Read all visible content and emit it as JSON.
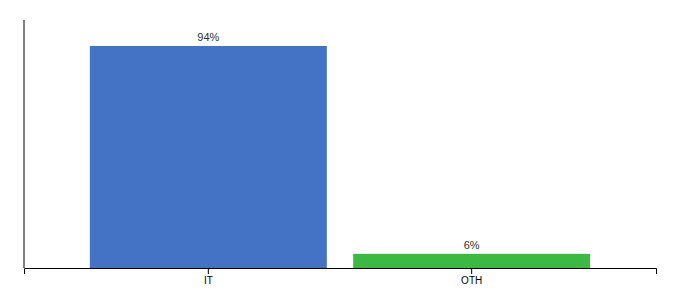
{
  "chart_data": {
    "type": "bar",
    "categories": [
      "IT",
      "OTH"
    ],
    "values": [
      94,
      6
    ],
    "value_labels": [
      "94%",
      "6%"
    ],
    "colors": [
      "#4472c4",
      "#3cb843"
    ],
    "ylim": [
      0,
      105
    ],
    "data_labels": true,
    "tick_labels": "x",
    "grid": false
  }
}
